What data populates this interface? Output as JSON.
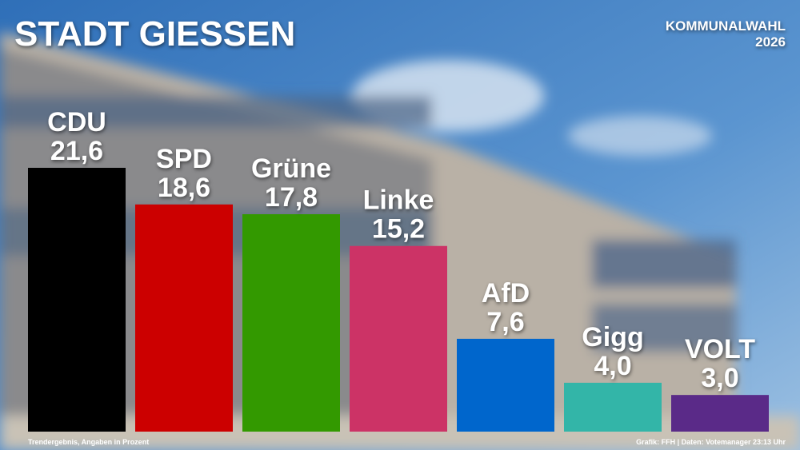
{
  "chart_data": {
    "type": "bar",
    "title": "STADT GIESSEN",
    "subtitle": [
      "KOMMUNALWAHL",
      "2026"
    ],
    "categories": [
      "CDU",
      "SPD",
      "Grüne",
      "Linke",
      "AfD",
      "Gigg",
      "VOLT"
    ],
    "values": [
      21.6,
      18.6,
      17.8,
      15.2,
      7.6,
      4.0,
      3.0
    ],
    "value_labels": [
      "21,6",
      "18,6",
      "17,8",
      "15,2",
      "7,6",
      "4,0",
      "3,0"
    ],
    "colors": [
      "#000000",
      "#cc0000",
      "#339900",
      "#cc3366",
      "#0066cc",
      "#33b5a8",
      "#5a2a88"
    ],
    "footnote_left": "Trendergebnis, Angaben in Prozent",
    "footnote_right": "Grafik: FFH | Daten: Votemanager 23:13 Uhr"
  }
}
